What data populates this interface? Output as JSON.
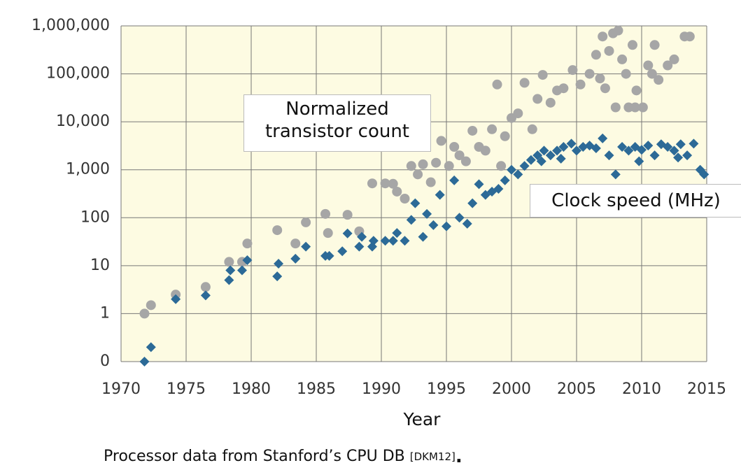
{
  "chart_data": {
    "type": "scatter",
    "x_label": "Year",
    "caption": [
      "Processor data from Stanford’s CPU DB",
      "[DKM12]",
      "."
    ],
    "xlim": [
      1970,
      2015
    ],
    "xticks": [
      1970,
      1975,
      1980,
      1985,
      1990,
      1995,
      2000,
      2005,
      2010,
      2015
    ],
    "ylim": [
      0.1,
      1000000
    ],
    "y_scale": "log",
    "yticks": [
      {
        "value": 0.1,
        "label": "0"
      },
      1,
      10,
      100,
      {
        "value": 1000,
        "label": "1,000"
      },
      {
        "value": 10000,
        "label": "10,000"
      },
      {
        "value": 100000,
        "label": "100,000"
      },
      {
        "value": 1000000,
        "label": "1,000,000"
      }
    ],
    "grid": true,
    "series": [
      {
        "name": "Normalized transistor count",
        "color": "#a6a6a6",
        "marker": "circle",
        "x": [
          1971.8,
          1972.3,
          1974.2,
          1976.5,
          1978.3,
          1979.3,
          1979.7,
          1982,
          1983.4,
          1984.2,
          1985.7,
          1985.9,
          1987.4,
          1988.3,
          1989.3,
          1990.3,
          1990.9,
          1991.2,
          1991.8,
          1992.3,
          1992.8,
          1993.2,
          1993.8,
          1994.2,
          1994.6,
          1995.2,
          1995.6,
          1996,
          1996.5,
          1997,
          1997.5,
          1998,
          1998.5,
          1998.9,
          1999.2,
          1999.5,
          2000,
          2000.5,
          2001,
          2001.6,
          2002,
          2002.4,
          2003,
          2003.5,
          2004,
          2004.7,
          2005.3,
          2006,
          2006.5,
          2007,
          2007.5,
          2007.8,
          2008.2,
          2008.5,
          2008.8,
          2009,
          2009.3,
          2009.6,
          2010.1,
          2010.5,
          2011,
          2011.3,
          2012,
          2013.3,
          2013.7,
          2006.8,
          2007.2,
          2008,
          2009.5,
          2010.8,
          2012.5
        ],
        "values": [
          1,
          1.5,
          2.5,
          3.6,
          12,
          12,
          29,
          55,
          29,
          80,
          120,
          48,
          115,
          52,
          520,
          520,
          510,
          350,
          250,
          1200,
          800,
          1300,
          550,
          1400,
          4000,
          1200,
          3000,
          2000,
          1500,
          6500,
          3000,
          2500,
          7000,
          60000,
          1200,
          5000,
          12000,
          15000,
          65000,
          7000,
          30000,
          95000,
          25000,
          45000,
          50000,
          120000,
          60000,
          100000,
          250000,
          600000,
          300000,
          700000,
          800000,
          200000,
          100000,
          20000,
          400000,
          45000,
          20000,
          150000,
          400000,
          75000,
          150000,
          600000,
          600000,
          80000,
          50000,
          20000,
          20000,
          100000,
          200000
        ]
      },
      {
        "name": "Clock speed (MHz)",
        "color": "#2c6a97",
        "marker": "diamond",
        "x": [
          1971.8,
          1972.3,
          1974.2,
          1976.5,
          1978.3,
          1978.4,
          1979.3,
          1979.7,
          1982,
          1982.1,
          1983.4,
          1984.2,
          1985.7,
          1986,
          1987,
          1987.4,
          1988.3,
          1988.5,
          1989.3,
          1989.4,
          1990.3,
          1990.9,
          1991.2,
          1991.8,
          1992.3,
          1992.6,
          1993.2,
          1993.5,
          1994,
          1994.5,
          1995,
          1995.6,
          1996,
          1996.6,
          1997,
          1997.5,
          1998,
          1998.5,
          1999,
          1999.5,
          2000,
          2000.5,
          2001,
          2001.5,
          2002,
          2002.5,
          2003,
          2003.5,
          2004,
          2004.6,
          2005,
          2005.5,
          2006,
          2006.5,
          2007,
          2007.5,
          2008,
          2008.5,
          2009,
          2009.5,
          2010,
          2010.5,
          2011,
          2011.5,
          2012,
          2012.5,
          2013,
          2013.5,
          2014,
          2014.5,
          2014.8,
          2002.3,
          2003.8,
          2009.8,
          2012.8
        ],
        "values": [
          0.1,
          0.2,
          2,
          2.4,
          5,
          8,
          8,
          13,
          6,
          11,
          14,
          25,
          16,
          16,
          20,
          47,
          25,
          40,
          25,
          33,
          33,
          33,
          48,
          33,
          90,
          200,
          40,
          120,
          70,
          300,
          66,
          600,
          100,
          75,
          200,
          500,
          300,
          350,
          400,
          600,
          1000,
          800,
          1200,
          1600,
          2000,
          2500,
          2000,
          2500,
          3000,
          3500,
          2500,
          3000,
          3200,
          2800,
          4500,
          2000,
          800,
          3000,
          2500,
          3000,
          2600,
          3200,
          2000,
          3400,
          3000,
          2500,
          3400,
          2000,
          3500,
          1000,
          800,
          1500,
          1700,
          1500,
          1800
        ]
      }
    ]
  }
}
